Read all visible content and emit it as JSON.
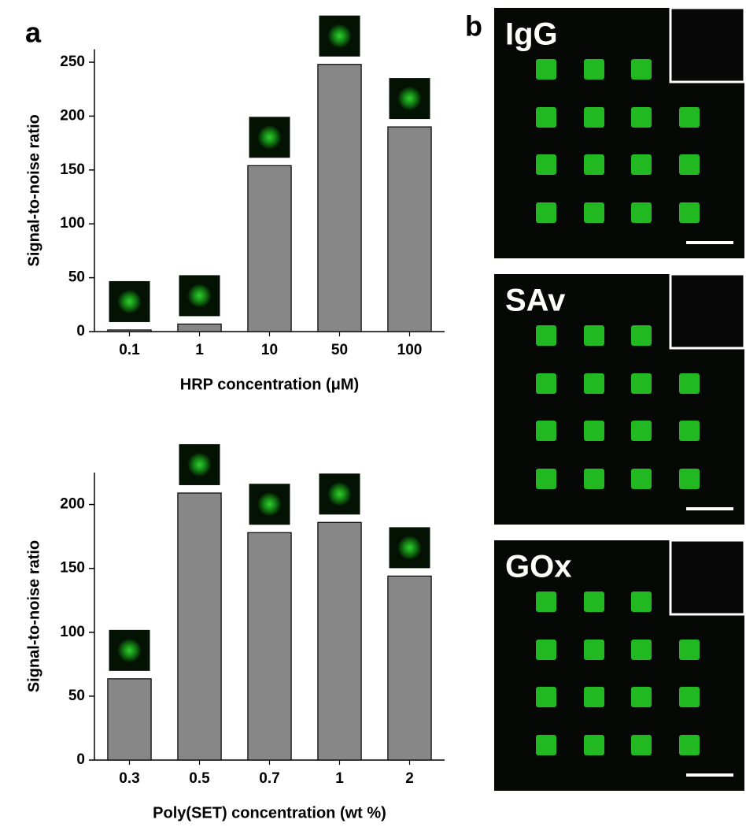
{
  "panel_labels": [
    "a",
    "b"
  ],
  "images": [
    {
      "label": "IgG"
    },
    {
      "label": "SAv"
    },
    {
      "label": "GOx"
    }
  ],
  "chart_data": [
    {
      "type": "bar",
      "x_label": "HRP concentration (μM)",
      "y_label": "Signal-to-noise ratio",
      "categories": [
        "0.1",
        "1",
        "10",
        "50",
        "100"
      ],
      "values": [
        1.5,
        7,
        154,
        248,
        190
      ],
      "color": "#878787",
      "ylim": [
        0,
        262
      ],
      "yticks": [
        0,
        50,
        100,
        150,
        200,
        250
      ]
    },
    {
      "type": "bar",
      "x_label": "Poly(SET) concentration (wt %)",
      "y_label": "Signal-to-noise ratio",
      "categories": [
        "0.3",
        "0.5",
        "0.7",
        "1",
        "2"
      ],
      "values": [
        63.6,
        209,
        178,
        186,
        144
      ],
      "color": "#878787",
      "ylim": [
        0,
        225
      ],
      "yticks": [
        0,
        50,
        100,
        150,
        200
      ]
    }
  ]
}
